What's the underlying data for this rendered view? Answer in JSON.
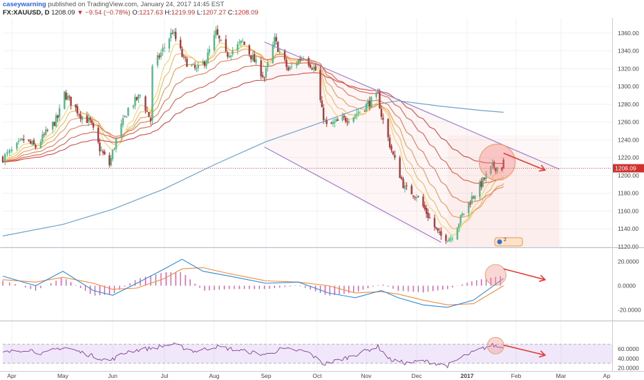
{
  "header": {
    "author": "caseywarning",
    "published_text": "published on TradingView.com, January 24, 2017 14:45 EST",
    "symbol": "FX:XAUUSD, D",
    "last": "1208.09",
    "change": "−9.54 (−0.78%)",
    "open_label": "O:",
    "open": "1217.63",
    "high_label": "H:",
    "high": "1219.99",
    "low_label": "L:",
    "low": "1207.27",
    "close_label": "C:",
    "close": "1208.09"
  },
  "colors": {
    "up": "#53b987",
    "down": "#a83a3a",
    "sma200": "#6fa1c7",
    "ema_set": [
      "#f6d26b",
      "#f0b860",
      "#ea9a58",
      "#e07b53",
      "#d9604d",
      "#cc4c47"
    ],
    "channel": "#9b7fd0",
    "annotation": "#e53935",
    "macd": "#2e8ad8",
    "signal": "#f08a3c",
    "hist": "#e14da7",
    "rsi": "#7d3f8c"
  },
  "chart_data": [
    {
      "type": "candlestick",
      "symbol": "FX:XAUUSD",
      "x_labels": [
        "Apr",
        "May",
        "Jun",
        "Jul",
        "Aug",
        "Sep",
        "Oct",
        "Nov",
        "Dec",
        "2017",
        "Feb",
        "Mar",
        "Ap"
      ],
      "y_ticks": [
        "1360.00",
        "1340.00",
        "1320.00",
        "1300.00",
        "1280.00",
        "1260.00",
        "1240.00",
        "1220.00",
        "1200.00",
        "1180.00",
        "1160.00",
        "1140.00",
        "1120.00"
      ],
      "ylim": [
        1120,
        1370
      ],
      "last_price": "1208.09",
      "price_path": [
        [
          "2016-03-28",
          1220
        ],
        [
          "2016-04-08",
          1240
        ],
        [
          "2016-04-15",
          1232
        ],
        [
          "2016-04-28",
          1265
        ],
        [
          "2016-05-02",
          1292
        ],
        [
          "2016-05-12",
          1268
        ],
        [
          "2016-05-18",
          1260
        ],
        [
          "2016-05-24",
          1230
        ],
        [
          "2016-05-30",
          1212
        ],
        [
          "2016-06-03",
          1240
        ],
        [
          "2016-06-10",
          1275
        ],
        [
          "2016-06-17",
          1290
        ],
        [
          "2016-06-23",
          1262
        ],
        [
          "2016-06-24",
          1320
        ],
        [
          "2016-07-06",
          1362
        ],
        [
          "2016-07-13",
          1330
        ],
        [
          "2016-07-21",
          1318
        ],
        [
          "2016-07-27",
          1330
        ],
        [
          "2016-08-02",
          1360
        ],
        [
          "2016-08-08",
          1335
        ],
        [
          "2016-08-18",
          1350
        ],
        [
          "2016-08-31",
          1310
        ],
        [
          "2016-09-06",
          1352
        ],
        [
          "2016-09-14",
          1318
        ],
        [
          "2016-09-23",
          1335
        ],
        [
          "2016-09-30",
          1318
        ],
        [
          "2016-10-04",
          1272
        ],
        [
          "2016-10-07",
          1255
        ],
        [
          "2016-10-25",
          1268
        ],
        [
          "2016-11-08",
          1290
        ],
        [
          "2016-11-10",
          1268
        ],
        [
          "2016-11-17",
          1222
        ],
        [
          "2016-11-24",
          1185
        ],
        [
          "2016-12-01",
          1178
        ],
        [
          "2016-12-15",
          1132
        ],
        [
          "2016-12-22",
          1130
        ],
        [
          "2016-12-29",
          1155
        ],
        [
          "2017-01-04",
          1175
        ],
        [
          "2017-01-09",
          1188
        ],
        [
          "2017-01-17",
          1210
        ],
        [
          "2017-01-24",
          1208
        ]
      ],
      "sma200": [
        [
          "2016-03-28",
          1132
        ],
        [
          "2016-05-01",
          1145
        ],
        [
          "2016-06-01",
          1162
        ],
        [
          "2016-07-01",
          1185
        ],
        [
          "2016-08-01",
          1212
        ],
        [
          "2016-09-01",
          1238
        ],
        [
          "2016-10-01",
          1258
        ],
        [
          "2016-11-01",
          1278
        ],
        [
          "2016-11-20",
          1284
        ],
        [
          "2016-12-15",
          1278
        ],
        [
          "2017-01-10",
          1273
        ],
        [
          "2017-01-24",
          1271
        ]
      ],
      "ema_count": 6,
      "shapes": {
        "channel_upper": [
          [
            "2016-08-31",
            1350
          ],
          [
            "2017-02-28",
            1207
          ]
        ],
        "channel_lower": [
          [
            "2016-08-31",
            1232
          ],
          [
            "2016-12-16",
            1125
          ]
        ],
        "highlight_circle_center": [
          "2017-01-20",
          1215
        ],
        "arrow": [
          [
            "2017-01-24",
            1225
          ],
          [
            "2017-02-19",
            1206
          ]
        ]
      },
      "badge_label": "2"
    },
    {
      "type": "line",
      "name": "MACD",
      "y_ticks": [
        "20.0000",
        "0.0000",
        "-20.0000"
      ],
      "ylim": [
        -25,
        30
      ],
      "series": [
        {
          "role": "macd",
          "points": [
            [
              "2016-03-28",
              8
            ],
            [
              "2016-04-15",
              0
            ],
            [
              "2016-05-01",
              12
            ],
            [
              "2016-05-20",
              -4
            ],
            [
              "2016-06-01",
              -8
            ],
            [
              "2016-06-15",
              2
            ],
            [
              "2016-07-01",
              14
            ],
            [
              "2016-07-12",
              22
            ],
            [
              "2016-07-25",
              12
            ],
            [
              "2016-08-10",
              8
            ],
            [
              "2016-09-01",
              2
            ],
            [
              "2016-09-20",
              3
            ],
            [
              "2016-10-08",
              -6
            ],
            [
              "2016-10-25",
              -10
            ],
            [
              "2016-11-10",
              -4
            ],
            [
              "2016-11-20",
              -10
            ],
            [
              "2016-12-05",
              -16
            ],
            [
              "2016-12-20",
              -18
            ],
            [
              "2017-01-05",
              -12
            ],
            [
              "2017-01-24",
              6
            ]
          ]
        },
        {
          "role": "signal",
          "points": [
            [
              "2016-03-28",
              5
            ],
            [
              "2016-04-15",
              3
            ],
            [
              "2016-05-01",
              7
            ],
            [
              "2016-05-20",
              2
            ],
            [
              "2016-06-01",
              -3
            ],
            [
              "2016-06-15",
              -2
            ],
            [
              "2016-07-01",
              6
            ],
            [
              "2016-07-12",
              14
            ],
            [
              "2016-07-25",
              15
            ],
            [
              "2016-08-10",
              10
            ],
            [
              "2016-09-01",
              4
            ],
            [
              "2016-09-20",
              3
            ],
            [
              "2016-10-08",
              0
            ],
            [
              "2016-10-25",
              -6
            ],
            [
              "2016-11-10",
              -5
            ],
            [
              "2016-11-20",
              -7
            ],
            [
              "2016-12-05",
              -12
            ],
            [
              "2016-12-20",
              -16
            ],
            [
              "2017-01-05",
              -15
            ],
            [
              "2017-01-24",
              0
            ]
          ]
        }
      ],
      "arrow": [
        [
          "2017-01-24",
          14
        ],
        [
          "2017-02-19",
          5
        ]
      ]
    },
    {
      "type": "line",
      "name": "RSI",
      "y_ticks": [
        "60.0000",
        "40.0000",
        "20.0000"
      ],
      "ylim": [
        15,
        75
      ],
      "band": [
        30,
        70
      ],
      "series": [
        {
          "role": "rsi",
          "points": [
            [
              "2016-03-28",
              52
            ],
            [
              "2016-04-10",
              60
            ],
            [
              "2016-04-20",
              50
            ],
            [
              "2016-05-01",
              65
            ],
            [
              "2016-05-15",
              50
            ],
            [
              "2016-05-30",
              35
            ],
            [
              "2016-06-10",
              55
            ],
            [
              "2016-06-24",
              62
            ],
            [
              "2016-07-06",
              70
            ],
            [
              "2016-07-20",
              55
            ],
            [
              "2016-08-02",
              65
            ],
            [
              "2016-08-20",
              55
            ],
            [
              "2016-09-01",
              48
            ],
            [
              "2016-09-10",
              60
            ],
            [
              "2016-09-25",
              55
            ],
            [
              "2016-10-05",
              28
            ],
            [
              "2016-10-20",
              42
            ],
            [
              "2016-11-08",
              65
            ],
            [
              "2016-11-15",
              38
            ],
            [
              "2016-11-25",
              30
            ],
            [
              "2016-12-05",
              35
            ],
            [
              "2016-12-20",
              25
            ],
            [
              "2016-12-30",
              45
            ],
            [
              "2017-01-10",
              60
            ],
            [
              "2017-01-17",
              68
            ],
            [
              "2017-01-24",
              62
            ]
          ]
        }
      ],
      "arrow": [
        [
          "2017-01-24",
          68
        ],
        [
          "2017-02-19",
          47
        ]
      ]
    }
  ]
}
